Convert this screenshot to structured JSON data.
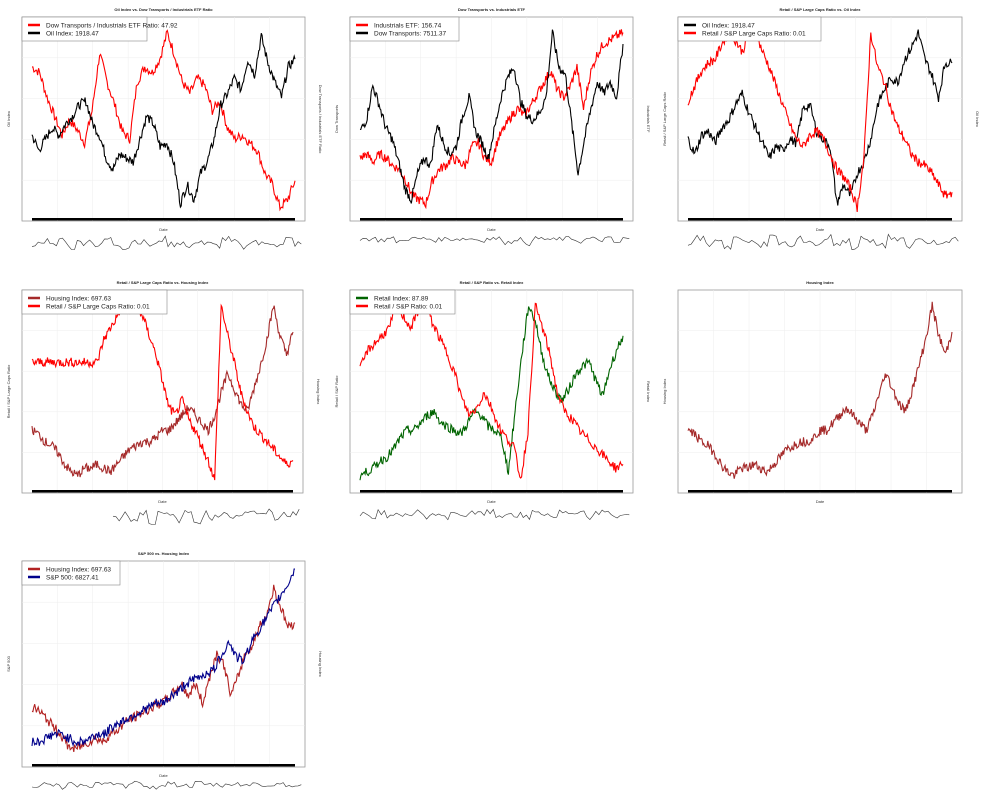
{
  "chart_data": [
    {
      "type": "line",
      "title": "Oil Index vs. Dow Transports / Industrials ETF Ratio",
      "xlabel": "Date",
      "ylabel": "Oil Index",
      "ylabel_right": "Dow Transports / Industrials ETF Ratio",
      "ylim": [
        0,
        100
      ],
      "grid": true,
      "legend": "top-left",
      "series": [
        {
          "name": "Dow Transports / Industrials ETF Ratio: 47.92",
          "color": "#ff0000",
          "axis": "right",
          "values": [
            78,
            75,
            62,
            52,
            42,
            50,
            45,
            38,
            55,
            85,
            70,
            58,
            44,
            40,
            70,
            78,
            75,
            82,
            96,
            84,
            70,
            64,
            72,
            68,
            55,
            60,
            46,
            40,
            42,
            38,
            34,
            22,
            16,
            4,
            8,
            18
          ]
        },
        {
          "name": "Oil Index: 1918.47",
          "color": "#000000",
          "axis": "left",
          "values": [
            42,
            34,
            40,
            46,
            42,
            48,
            52,
            58,
            60,
            48,
            42,
            30,
            24,
            32,
            30,
            28,
            40,
            52,
            48,
            36,
            38,
            28,
            6,
            16,
            8,
            22,
            28,
            40,
            58,
            64,
            72,
            66,
            82,
            74,
            94,
            80,
            70,
            62,
            78,
            82
          ]
        }
      ],
      "lower": [
        5,
        7,
        4,
        8,
        3,
        6,
        7,
        4,
        8,
        5,
        3,
        7,
        6,
        4,
        8,
        5,
        6,
        3,
        7,
        5,
        4,
        8,
        6,
        3,
        7,
        5,
        6,
        4,
        8,
        5
      ]
    },
    {
      "type": "line",
      "title": "Dow Transports vs. Industrials ETF",
      "xlabel": "Date",
      "ylabel": "Dow Transports",
      "ylabel_right": "Industrials ETF",
      "ylim": [
        0,
        100
      ],
      "grid": true,
      "legend": "top-left",
      "series": [
        {
          "name": "Industrials ETF: 156.74",
          "color": "#ff0000",
          "axis": "right",
          "values": [
            30,
            32,
            28,
            32,
            30,
            26,
            24,
            18,
            10,
            8,
            6,
            18,
            24,
            26,
            30,
            28,
            26,
            36,
            38,
            30,
            28,
            40,
            46,
            52,
            56,
            52,
            58,
            64,
            70,
            76,
            66,
            62,
            68,
            78,
            56,
            74,
            84,
            90,
            92,
            94,
            96
          ]
        },
        {
          "name": "Dow Transports: 7511.37",
          "color": "#000000",
          "axis": "left",
          "values": [
            44,
            50,
            68,
            58,
            46,
            40,
            28,
            14,
            8,
            22,
            30,
            26,
            48,
            38,
            32,
            36,
            52,
            62,
            44,
            38,
            30,
            46,
            62,
            72,
            78,
            60,
            52,
            50,
            54,
            62,
            96,
            78,
            74,
            48,
            22,
            40,
            56,
            70,
            64,
            70,
            62,
            90
          ]
        }
      ],
      "lower": [
        6,
        6,
        5,
        6,
        4,
        6,
        6,
        6,
        5,
        6,
        6,
        6,
        6,
        5,
        6,
        6,
        3,
        6,
        2,
        6,
        6,
        5,
        6,
        6,
        4,
        6,
        5,
        6,
        3,
        6
      ]
    },
    {
      "type": "line",
      "title": "Retail / S&P Large Caps Ratio vs. Oil Index",
      "xlabel": "Date",
      "ylabel": "Retail / S&P Large Caps Ratio",
      "ylabel_right": "Oil Index",
      "ylim": [
        0,
        100
      ],
      "grid": true,
      "legend": "top-left",
      "series": [
        {
          "name": "Oil Index: 1918.47",
          "color": "#000000",
          "axis": "right",
          "values": [
            40,
            32,
            42,
            44,
            38,
            46,
            50,
            58,
            64,
            54,
            46,
            38,
            30,
            36,
            34,
            40,
            38,
            56,
            58,
            44,
            40,
            36,
            6,
            16,
            10,
            22,
            28,
            40,
            58,
            66,
            72,
            70,
            82,
            88,
            96,
            82,
            74,
            62,
            80,
            80
          ]
        },
        {
          "name": "Retail / S&P Large Caps Ratio: 0.01",
          "color": "#ff0000",
          "axis": "left",
          "values": [
            60,
            68,
            76,
            80,
            82,
            90,
            96,
            92,
            86,
            94,
            96,
            86,
            78,
            68,
            58,
            48,
            40,
            36,
            42,
            44,
            40,
            32,
            24,
            20,
            14,
            4,
            30,
            96,
            78,
            70,
            56,
            46,
            40,
            32,
            28,
            26,
            22,
            16,
            10,
            12
          ]
        }
      ],
      "lower": [
        5,
        8,
        4,
        7,
        3,
        8,
        5,
        6,
        4,
        8,
        5,
        3,
        7,
        6,
        4,
        8,
        5,
        6,
        3,
        7,
        5,
        4,
        8,
        6,
        3,
        7,
        5,
        6,
        4,
        8
      ]
    },
    {
      "type": "line",
      "title": "Retail / S&P Large Caps Ratio vs. Housing Index",
      "xlabel": "Date",
      "ylabel": "Retail / S&P Large Caps Ratio",
      "ylabel_right": "Housing Index",
      "ylim": [
        0,
        100
      ],
      "grid": true,
      "legend": "top-left",
      "series": [
        {
          "name": "Housing Index: 697.63",
          "color": "#a52a2a",
          "axis": "right",
          "values": [
            30,
            28,
            24,
            22,
            18,
            12,
            8,
            6,
            10,
            10,
            12,
            10,
            8,
            12,
            16,
            20,
            22,
            24,
            24,
            26,
            30,
            30,
            34,
            38,
            42,
            38,
            34,
            30,
            38,
            50,
            60,
            52,
            44,
            40,
            52,
            64,
            78,
            96,
            80,
            70,
            82
          ]
        },
        {
          "name": "Retail / S&P Large Caps Ratio: 0.01",
          "color": "#ff0000",
          "axis": "left",
          "values": [
            66,
            66,
            66,
            66,
            66,
            66,
            66,
            66,
            66,
            66,
            66,
            78,
            84,
            90,
            98,
            92,
            96,
            90,
            80,
            70,
            56,
            42,
            38,
            46,
            36,
            30,
            22,
            14,
            4,
            96,
            80,
            66,
            50,
            40,
            32,
            28,
            24,
            20,
            16,
            12,
            14
          ]
        }
      ],
      "lower": [
        null,
        null,
        null,
        null,
        null,
        null,
        null,
        null,
        null,
        4,
        6,
        3,
        7,
        2,
        6,
        5,
        3,
        7,
        2,
        6,
        4,
        7,
        5,
        6,
        8,
        5,
        7,
        4,
        6,
        7
      ]
    },
    {
      "type": "line",
      "title": "Retail / S&P Ratio vs. Retail Index",
      "xlabel": "Date",
      "ylabel": "Retail / S&P Ratio",
      "ylabel_right": "Retail Index",
      "ylim": [
        0,
        100
      ],
      "grid": true,
      "legend": "top-left",
      "series": [
        {
          "name": "Retail Index: 87.89",
          "color": "#006400",
          "axis": "right",
          "values": [
            6,
            8,
            10,
            14,
            16,
            20,
            26,
            30,
            30,
            34,
            38,
            40,
            34,
            32,
            30,
            28,
            34,
            40,
            38,
            32,
            30,
            26,
            8,
            40,
            70,
            96,
            88,
            70,
            58,
            50,
            46,
            52,
            60,
            64,
            66,
            56,
            48,
            62,
            72,
            80
          ]
        },
        {
          "name": "Retail / S&P Ratio: 0.01",
          "color": "#ff0000",
          "axis": "left",
          "values": [
            62,
            72,
            76,
            80,
            84,
            96,
            90,
            84,
            94,
            96,
            86,
            78,
            70,
            60,
            46,
            38,
            42,
            50,
            42,
            32,
            26,
            22,
            4,
            30,
            96,
            84,
            70,
            50,
            40,
            36,
            30,
            26,
            22,
            18,
            14,
            10,
            12
          ]
        }
      ],
      "lower": [
        6,
        4,
        7,
        3,
        6,
        5,
        7,
        4,
        6,
        3,
        7,
        5,
        6,
        6,
        7,
        4,
        6,
        5,
        3,
        7,
        6,
        4,
        7,
        5,
        6,
        3,
        7,
        6,
        4,
        6
      ]
    },
    {
      "type": "line",
      "title": "Housing Index",
      "xlabel": "Date",
      "ylabel": "Housing Index",
      "ylim": [
        0,
        100
      ],
      "grid": true,
      "legend": "none",
      "series": [
        {
          "name": "Housing Index",
          "color": "#a52a2a",
          "axis": "left",
          "values": [
            30,
            28,
            24,
            22,
            18,
            12,
            8,
            6,
            10,
            10,
            12,
            10,
            8,
            12,
            16,
            20,
            22,
            24,
            24,
            26,
            30,
            30,
            34,
            38,
            42,
            38,
            34,
            30,
            38,
            50,
            60,
            52,
            44,
            40,
            52,
            64,
            78,
            96,
            80,
            70,
            82
          ]
        }
      ],
      "lower": []
    },
    {
      "type": "line",
      "title": "S&P 500 vs. Housing Index",
      "xlabel": "Date",
      "ylabel": "S&P 500",
      "ylabel_right": "Housing Index",
      "ylim": [
        0,
        100
      ],
      "grid": true,
      "legend": "top-left",
      "series": [
        {
          "name": "Housing Index: 697.63",
          "color": "#b22222",
          "axis": "right",
          "values": [
            28,
            26,
            22,
            18,
            14,
            8,
            6,
            8,
            10,
            12,
            10,
            14,
            16,
            20,
            22,
            24,
            26,
            28,
            30,
            32,
            36,
            40,
            34,
            40,
            30,
            44,
            56,
            50,
            34,
            44,
            56,
            60,
            70,
            76,
            90,
            80,
            70,
            72
          ]
        },
        {
          "name": "S&P 500: 6827.41",
          "color": "#00008b",
          "axis": "left",
          "values": [
            10,
            10,
            12,
            14,
            14,
            12,
            10,
            10,
            12,
            14,
            14,
            18,
            20,
            22,
            24,
            26,
            28,
            30,
            30,
            34,
            36,
            40,
            42,
            44,
            46,
            48,
            56,
            62,
            54,
            52,
            62,
            68,
            74,
            80,
            86,
            92,
            100
          ]
        }
      ],
      "lower": [
        5,
        7,
        6,
        4,
        7,
        6,
        5,
        7,
        6,
        6,
        5,
        7,
        6,
        4,
        6,
        7,
        6,
        5,
        7,
        6,
        6,
        5,
        7,
        6,
        7,
        5,
        6,
        7,
        6,
        5
      ]
    }
  ]
}
